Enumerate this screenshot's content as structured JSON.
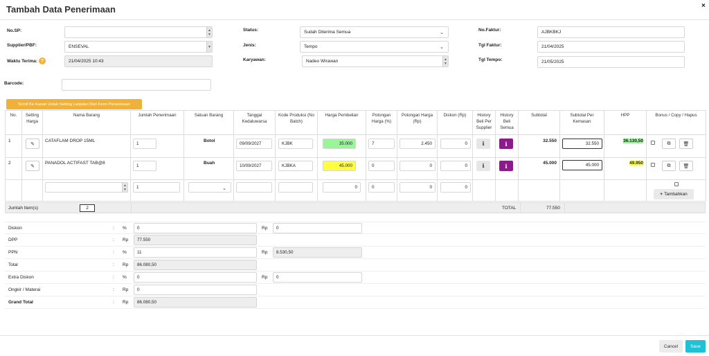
{
  "modal": {
    "title": "Tambah Data Penerimaan",
    "close_label": "×"
  },
  "form": {
    "no_sp": {
      "label": "No.SP:",
      "value": ""
    },
    "supplier": {
      "label": "Supplier/PBF:",
      "value": "ENSEVAL"
    },
    "waktu": {
      "label": "Waktu Terima:",
      "value": "21/04/2025 10:43"
    },
    "barcode": {
      "label": "Barcode:",
      "value": ""
    },
    "status": {
      "label": "Status:",
      "value": "Sudah Diterima Semua"
    },
    "jenis": {
      "label": "Jenis:",
      "value": "Tempo"
    },
    "karyawan": {
      "label": "Karyawan:",
      "value": "Nadeo Wirawan"
    },
    "no_faktur": {
      "label": "No.Faktur:",
      "value": "AJBKBKJ"
    },
    "tgl_faktur": {
      "label": "Tgl Faktur:",
      "value": "21/04/2025"
    },
    "tgl_tempo": {
      "label": "Tgl Tempo:",
      "value": "21/05/2025"
    }
  },
  "scroll_hint": "Scroll Ke Kanan Untuk Setting Lanjutan Dari Form Penerimaan",
  "table": {
    "headers": [
      "No.",
      "Setting Harga",
      "Nama Barang",
      "Jumlah Penerimaan",
      "Satuan Barang",
      "Tanggal Kedaluwarsa",
      "Kode Produksi (No Batch)",
      "Harga Pembelian",
      "Potongan Harga (%)",
      "Potongan Harga (Rp)",
      "Diskon (Rp)",
      "History Beli Per Supplier",
      "History Beli Semua",
      "Subtotal",
      "Subtotal Per Kemasan",
      "HPP",
      "Bonus / Copy / Hapus"
    ],
    "rows": [
      {
        "no": "1",
        "nama": "CATAFLAM DROP 15ML",
        "jumlah": "1",
        "satuan": "Botol",
        "tgl": "09/09/2027",
        "kode": "KJBK",
        "harga": "35.000",
        "pot_pct": "7",
        "pot_rp": "2.450",
        "diskon": "0",
        "subtotal": "32.550",
        "subtotal_kemasan": "32.550",
        "hpp": "36.130,50"
      },
      {
        "no": "2",
        "nama": "PANADOL ACTIFAST TAB@8",
        "jumlah": "1",
        "satuan": "Buah",
        "tgl": "10/09/2027",
        "kode": "KJBKA",
        "harga": "45.000",
        "pot_pct": "0",
        "pot_rp": "0",
        "diskon": "0",
        "subtotal": "45.000",
        "subtotal_kemasan": "45.000",
        "hpp": "49.950"
      }
    ],
    "new_row": {
      "jumlah": "1",
      "harga": "0",
      "pot_pct": "0",
      "pot_rp": "0",
      "diskon": "0",
      "add_label": "Tambahkan"
    },
    "footer": {
      "jumlah_label": "Jumlah Item(s)",
      "jumlah_value": "2",
      "total_label": "TOTAL",
      "total_value": "77.550"
    }
  },
  "summary": {
    "diskon": {
      "label": "Diskon",
      "unit1": "%",
      "val1": "0",
      "unit2": "Rp",
      "val2": "0"
    },
    "dpp": {
      "label": "DPP",
      "unit1": "Rp",
      "val1": "77.550"
    },
    "ppn": {
      "label": "PPN",
      "unit1": "%",
      "val1": "11",
      "unit2": "Rp",
      "val2": "8.530,50"
    },
    "total": {
      "label": "Total",
      "unit1": "Rp",
      "val1": "86.080,50"
    },
    "extra": {
      "label": "Extra Diskon",
      "unit1": "%",
      "val1": "0",
      "unit2": "Rp",
      "val2": "0"
    },
    "ongkir": {
      "label": "Ongkir / Materai",
      "unit1": "Rp",
      "val1": "0"
    },
    "grand": {
      "label": "Grand Total",
      "unit1": "Rp",
      "val1": "86.080,50"
    },
    "colon": ":"
  },
  "buttons": {
    "cancel": "Cancel",
    "save": "Save"
  },
  "colors": {
    "accent": "#1fc1d6",
    "warning": "#f0b13a",
    "purple": "#8b1a8b",
    "green_hl": "#98f598",
    "yellow_hl": "#ffff40"
  }
}
